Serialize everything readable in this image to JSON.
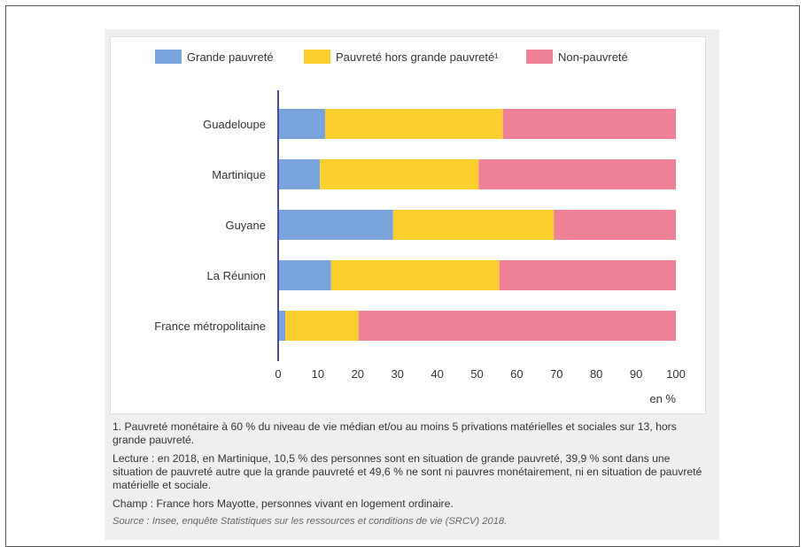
{
  "chart_data": {
    "type": "bar",
    "orientation": "horizontal",
    "stacked": true,
    "categories": [
      "Guadeloupe",
      "Martinique",
      "Guyane",
      "La Réunion",
      "France métropolitaine"
    ],
    "series": [
      {
        "name": "Grande pauvreté",
        "color": "#7ba3dd",
        "values": [
          11.8,
          10.5,
          28.9,
          13.3,
          1.8
        ]
      },
      {
        "name": "Pauvreté hors grande pauvreté¹",
        "color": "#fccf2e",
        "values": [
          44.7,
          39.9,
          40.4,
          42.3,
          18.4
        ]
      },
      {
        "name": "Non-pauvreté",
        "color": "#f08298",
        "values": [
          43.5,
          49.6,
          30.7,
          44.4,
          79.8
        ]
      }
    ],
    "xlim": [
      0,
      100
    ],
    "xticks": [
      0,
      10,
      20,
      30,
      40,
      50,
      60,
      70,
      80,
      90,
      100
    ],
    "xlabel": "en %",
    "legend_position": "top",
    "grid": false
  },
  "notes": {
    "footnote": "1. Pauvreté monétaire à 60 % du niveau de vie médian et/ou au moins 5 privations matérielles et sociales sur 13, hors grande pauvreté.",
    "reading": "Lecture : en 2018, en Martinique, 10,5 % des personnes sont en situation de grande pauvreté, 39,9 % sont dans une situation de pauvreté autre que la grande pauvreté et 49,6 % ne sont ni pauvres monétairement, ni en situation de pauvreté matérielle et sociale.",
    "scope": "Champ : France hors Mayotte, personnes vivant en logement ordinaire.",
    "source": "Source : Insee, enquête Statistiques sur les ressources et conditions de vie (SRCV) 2018."
  }
}
